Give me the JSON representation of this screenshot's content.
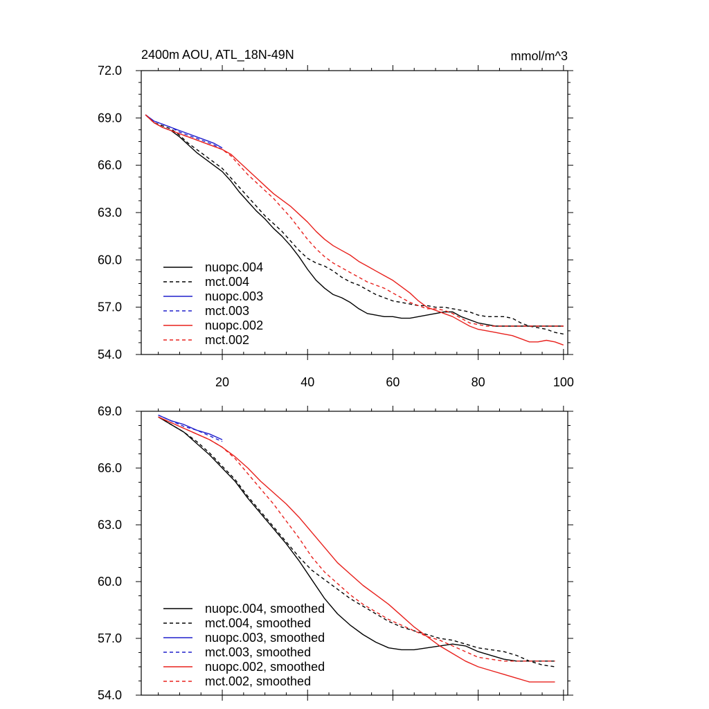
{
  "chart_data": [
    {
      "type": "line",
      "title": "2400m AOU, ATL_18N-49N",
      "units": "mmol/m^3",
      "xlabel": "",
      "ylabel": "",
      "xlim": [
        1,
        101
      ],
      "ylim": [
        54.0,
        72.0
      ],
      "x_ticks": [
        20,
        40,
        60,
        80,
        100
      ],
      "y_ticks": [
        54.0,
        57.0,
        60.0,
        63.0,
        66.0,
        69.0,
        72.0
      ],
      "y_tick_labels": [
        "54.0",
        "57.0",
        "60.0",
        "63.0",
        "66.0",
        "69.0",
        "72.0"
      ],
      "legend_position": "bottom-left",
      "series": [
        {
          "name": "nuopc.004",
          "color": "#000000",
          "dash": "solid",
          "x": [
            2,
            4,
            6,
            8,
            10,
            12,
            14,
            16,
            18,
            20,
            22,
            24,
            26,
            28,
            30,
            32,
            34,
            36,
            38,
            40,
            42,
            44,
            46,
            48,
            50,
            52,
            54,
            56,
            58,
            60,
            62,
            64,
            66,
            68,
            70,
            72,
            74,
            76,
            78,
            80,
            82,
            84,
            86,
            88,
            90,
            92,
            94,
            96,
            98,
            100
          ],
          "values": [
            69.2,
            68.7,
            68.4,
            68.2,
            67.8,
            67.3,
            66.8,
            66.4,
            66.0,
            65.6,
            65.0,
            64.3,
            63.7,
            63.1,
            62.6,
            62.0,
            61.5,
            60.9,
            60.2,
            59.4,
            58.7,
            58.2,
            57.8,
            57.6,
            57.3,
            56.9,
            56.6,
            56.5,
            56.4,
            56.4,
            56.3,
            56.3,
            56.4,
            56.5,
            56.6,
            56.7,
            56.7,
            56.4,
            56.2,
            56.0,
            55.9,
            55.8,
            55.8,
            55.8,
            55.8,
            55.8,
            55.8,
            55.8,
            55.8,
            55.8
          ]
        },
        {
          "name": "mct.004",
          "color": "#000000",
          "dash": "dashed",
          "x": [
            2,
            4,
            6,
            8,
            10,
            12,
            14,
            16,
            18,
            20,
            22,
            24,
            26,
            28,
            30,
            32,
            34,
            36,
            38,
            40,
            42,
            44,
            46,
            48,
            50,
            52,
            54,
            56,
            58,
            60,
            62,
            64,
            66,
            68,
            70,
            72,
            74,
            76,
            78,
            80,
            82,
            84,
            86,
            88,
            90,
            92,
            94,
            96,
            98,
            100
          ],
          "values": [
            69.2,
            68.7,
            68.5,
            68.3,
            67.9,
            67.4,
            67.0,
            66.6,
            66.2,
            65.8,
            65.2,
            64.6,
            64.0,
            63.4,
            62.8,
            62.3,
            61.8,
            61.2,
            60.6,
            60.1,
            59.8,
            59.6,
            59.3,
            58.9,
            58.6,
            58.4,
            58.1,
            57.8,
            57.6,
            57.4,
            57.3,
            57.2,
            57.1,
            57.1,
            57.0,
            57.0,
            56.9,
            56.8,
            56.7,
            56.5,
            56.4,
            56.4,
            56.4,
            56.3,
            56.0,
            55.8,
            55.7,
            55.6,
            55.4,
            55.3
          ]
        },
        {
          "name": "nuopc.003",
          "color": "#1f1fcc",
          "dash": "solid",
          "x": [
            2,
            4,
            6,
            8,
            10,
            12,
            14,
            16,
            18,
            20
          ],
          "values": [
            69.2,
            68.8,
            68.6,
            68.4,
            68.2,
            68.0,
            67.8,
            67.6,
            67.4,
            67.1
          ]
        },
        {
          "name": "mct.003",
          "color": "#1f1fcc",
          "dash": "dashed",
          "x": [
            2,
            4,
            6,
            8,
            10,
            12,
            14,
            16,
            18,
            20
          ],
          "values": [
            69.2,
            68.8,
            68.6,
            68.4,
            68.1,
            67.9,
            67.7,
            67.5,
            67.3,
            67.0
          ]
        },
        {
          "name": "nuopc.002",
          "color": "#e8201c",
          "dash": "solid",
          "x": [
            2,
            4,
            6,
            8,
            10,
            12,
            14,
            16,
            18,
            20,
            22,
            24,
            26,
            28,
            30,
            32,
            34,
            36,
            38,
            40,
            42,
            44,
            46,
            48,
            50,
            52,
            54,
            56,
            58,
            60,
            62,
            64,
            66,
            68,
            70,
            72,
            74,
            76,
            78,
            80,
            82,
            84,
            86,
            88,
            90,
            92,
            94,
            96,
            98,
            100
          ],
          "values": [
            69.2,
            68.7,
            68.4,
            68.2,
            68.0,
            67.8,
            67.6,
            67.4,
            67.2,
            67.0,
            66.7,
            66.2,
            65.7,
            65.2,
            64.7,
            64.2,
            63.8,
            63.4,
            62.9,
            62.4,
            61.8,
            61.3,
            60.9,
            60.6,
            60.3,
            59.9,
            59.6,
            59.3,
            59.0,
            58.7,
            58.3,
            57.9,
            57.4,
            57.0,
            56.8,
            56.6,
            56.4,
            56.1,
            55.8,
            55.6,
            55.5,
            55.4,
            55.3,
            55.2,
            55.0,
            54.8,
            54.8,
            54.9,
            54.8,
            54.6
          ]
        },
        {
          "name": "mct.002",
          "color": "#e8201c",
          "dash": "dashed",
          "x": [
            2,
            4,
            6,
            8,
            10,
            12,
            14,
            16,
            18,
            20,
            22,
            24,
            26,
            28,
            30,
            32,
            34,
            36,
            38,
            40,
            42,
            44,
            46,
            48,
            50,
            52,
            54,
            56,
            58,
            60,
            62,
            64,
            66,
            68,
            70,
            72,
            74,
            76,
            78,
            80,
            82,
            84,
            86,
            88,
            90,
            92,
            94,
            96,
            98,
            100
          ],
          "values": [
            69.2,
            68.7,
            68.4,
            68.2,
            68.0,
            67.8,
            67.6,
            67.4,
            67.2,
            67.0,
            66.6,
            66.0,
            65.4,
            64.9,
            64.4,
            63.9,
            63.3,
            62.7,
            62.0,
            61.3,
            60.7,
            60.2,
            59.8,
            59.5,
            59.2,
            58.9,
            58.6,
            58.4,
            58.2,
            57.9,
            57.6,
            57.3,
            57.1,
            56.9,
            56.9,
            56.8,
            56.6,
            56.3,
            56.0,
            55.9,
            55.8,
            55.8,
            55.8,
            55.8,
            55.8,
            55.8,
            55.8,
            55.8,
            55.8,
            55.8
          ]
        }
      ]
    },
    {
      "type": "line",
      "title": "",
      "xlabel": "",
      "ylabel": "",
      "xlim": [
        1,
        101
      ],
      "ylim": [
        54.0,
        69.0
      ],
      "x_ticks": [
        20,
        40,
        60,
        80,
        100
      ],
      "y_ticks": [
        54.0,
        57.0,
        60.0,
        63.0,
        66.0,
        69.0
      ],
      "y_tick_labels": [
        "54.0",
        "57.0",
        "60.0",
        "63.0",
        "66.0",
        "69.0"
      ],
      "legend_position": "bottom-left",
      "series": [
        {
          "name": "nuopc.004, smoothed",
          "color": "#000000",
          "dash": "solid",
          "x": [
            5,
            8,
            11,
            14,
            17,
            20,
            23,
            26,
            29,
            32,
            35,
            38,
            41,
            44,
            47,
            50,
            53,
            56,
            59,
            62,
            65,
            68,
            71,
            74,
            77,
            80,
            83,
            86,
            89,
            92,
            95,
            98
          ],
          "values": [
            68.7,
            68.3,
            67.9,
            67.3,
            66.7,
            66.0,
            65.3,
            64.4,
            63.6,
            62.8,
            62.0,
            61.1,
            60.1,
            59.1,
            58.3,
            57.7,
            57.2,
            56.8,
            56.5,
            56.4,
            56.4,
            56.5,
            56.6,
            56.7,
            56.6,
            56.3,
            56.1,
            55.9,
            55.8,
            55.8,
            55.8,
            55.8
          ]
        },
        {
          "name": "mct.004, smoothed",
          "color": "#000000",
          "dash": "dashed",
          "x": [
            5,
            8,
            11,
            14,
            17,
            20,
            23,
            26,
            29,
            32,
            35,
            38,
            41,
            44,
            47,
            50,
            53,
            56,
            59,
            62,
            65,
            68,
            71,
            74,
            77,
            80,
            83,
            86,
            89,
            92,
            95,
            98
          ],
          "values": [
            68.7,
            68.3,
            67.9,
            67.4,
            66.8,
            66.1,
            65.4,
            64.5,
            63.7,
            62.9,
            62.1,
            61.3,
            60.6,
            60.1,
            59.6,
            59.1,
            58.7,
            58.3,
            57.9,
            57.6,
            57.4,
            57.2,
            57.0,
            56.9,
            56.7,
            56.5,
            56.4,
            56.3,
            56.1,
            55.8,
            55.6,
            55.5
          ]
        },
        {
          "name": "nuopc.003, smoothed",
          "color": "#1f1fcc",
          "dash": "solid",
          "x": [
            5,
            8,
            11,
            14,
            17,
            20
          ],
          "values": [
            68.8,
            68.5,
            68.3,
            68.0,
            67.8,
            67.5
          ]
        },
        {
          "name": "mct.003, smoothed",
          "color": "#1f1fcc",
          "dash": "dashed",
          "x": [
            5,
            8,
            11,
            14,
            17,
            20
          ],
          "values": [
            68.8,
            68.5,
            68.2,
            68.0,
            67.7,
            67.4
          ]
        },
        {
          "name": "nuopc.002, smoothed",
          "color": "#e8201c",
          "dash": "solid",
          "x": [
            5,
            8,
            11,
            14,
            17,
            20,
            23,
            26,
            29,
            32,
            35,
            38,
            41,
            44,
            47,
            50,
            53,
            56,
            59,
            62,
            65,
            68,
            71,
            74,
            77,
            80,
            83,
            86,
            89,
            92,
            95,
            98
          ],
          "values": [
            68.7,
            68.4,
            68.1,
            67.8,
            67.5,
            67.1,
            66.6,
            66.0,
            65.3,
            64.7,
            64.1,
            63.4,
            62.6,
            61.8,
            61.0,
            60.4,
            59.8,
            59.3,
            58.8,
            58.2,
            57.6,
            57.1,
            56.6,
            56.2,
            55.8,
            55.5,
            55.3,
            55.1,
            54.9,
            54.7,
            54.7,
            54.7
          ]
        },
        {
          "name": "mct.002, smoothed",
          "color": "#e8201c",
          "dash": "dashed",
          "x": [
            5,
            8,
            11,
            14,
            17,
            20,
            23,
            26,
            29,
            32,
            35,
            38,
            41,
            44,
            47,
            50,
            53,
            56,
            59,
            62,
            65,
            68,
            71,
            74,
            77,
            80,
            83,
            86,
            89,
            92,
            95,
            98
          ],
          "values": [
            68.7,
            68.4,
            68.1,
            67.8,
            67.5,
            67.1,
            66.5,
            65.7,
            64.9,
            64.1,
            63.2,
            62.3,
            61.3,
            60.5,
            59.9,
            59.3,
            58.8,
            58.4,
            58.0,
            57.7,
            57.4,
            57.1,
            56.9,
            56.6,
            56.3,
            56.0,
            55.9,
            55.8,
            55.8,
            55.8,
            55.8,
            55.8
          ]
        }
      ]
    }
  ]
}
